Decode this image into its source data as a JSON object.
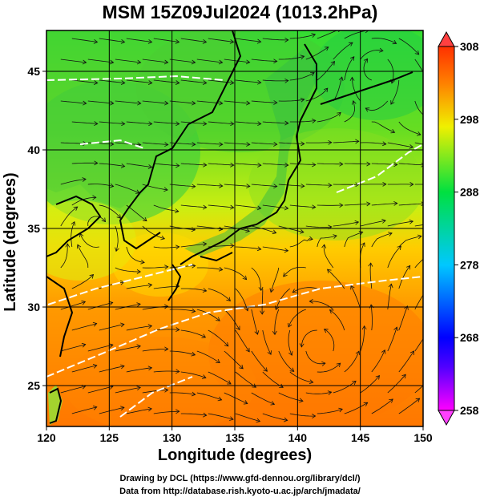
{
  "title": "MSM 15Z09Jul2024 (1013.2hPa)",
  "xlabel": "Longitude (degrees)",
  "ylabel": "Latitude  (degrees)",
  "credits": [
    "Drawing by DCL (https://www.gfd-dennou.org/library/dcl/)",
    "Data from http://database.rish.kyoto-u.ac.jp/arch/jmadata/"
  ],
  "chart_data": {
    "type": "heatmap",
    "title": "MSM 15Z09Jul2024 (1013.2hPa)",
    "xlabel": "Longitude (degrees)",
    "ylabel": "Latitude  (degrees)",
    "xlim": [
      120,
      150
    ],
    "ylim": [
      22.4,
      47.6
    ],
    "x_ticks": [
      120,
      125,
      130,
      135,
      140,
      145,
      150
    ],
    "y_ticks": [
      25,
      30,
      35,
      40,
      45
    ],
    "grid": true,
    "colorbar": {
      "ticks": [
        258,
        268,
        278,
        288,
        298,
        308
      ],
      "range": [
        258,
        308
      ],
      "colors": [
        "#ff00ff",
        "#0000ff",
        "#00c8ff",
        "#00e040",
        "#ffff00",
        "#ff8000",
        "#ff3000"
      ]
    },
    "overlays": [
      "streamlines",
      "coastlines",
      "contours"
    ]
  }
}
